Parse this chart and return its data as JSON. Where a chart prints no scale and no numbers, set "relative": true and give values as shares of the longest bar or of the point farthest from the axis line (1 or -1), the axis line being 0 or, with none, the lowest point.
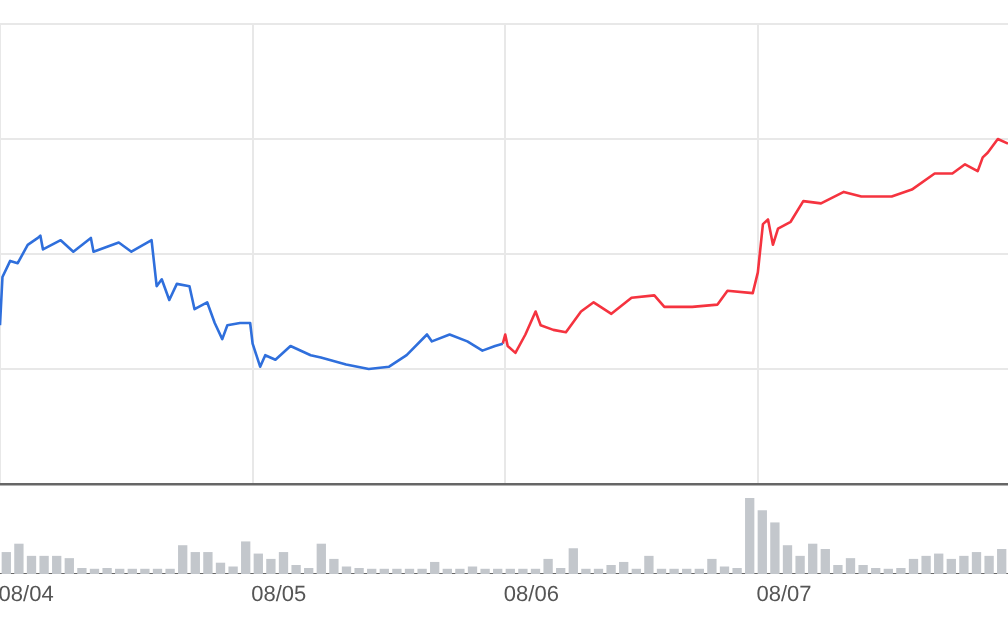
{
  "chart_data": [
    {
      "type": "line",
      "relative": true,
      "grid": true,
      "legend": false,
      "marker": "none",
      "xlim": [
        "--08-04T00:00",
        "--08-07T23:46"
      ],
      "xticks": [
        {
          "value": "--08-04",
          "label": null
        },
        {
          "value": "--08-04T02:29",
          "label": "08/04"
        },
        {
          "value": "--08-05",
          "label": null
        },
        {
          "value": "--08-05T02:29",
          "label": "08/05"
        },
        {
          "value": "--08-06",
          "label": null
        },
        {
          "value": "--08-06T02:29",
          "label": "08/06"
        },
        {
          "value": "--08-07",
          "label": null
        },
        {
          "value": "--08-07T02:29",
          "label": "08/07"
        }
      ],
      "series": [
        {
          "color": "#2f6fdc",
          "x": [
            "--08-04T00:00",
            "--08-04T00:14",
            "--08-04T00:58",
            "--08-04T01:41",
            "--08-04T02:38",
            "--08-04T03:36",
            "--08-04T03:50",
            "--08-04T04:05",
            "--08-04T05:46",
            "--08-04T06:58",
            "--08-04T08:38",
            "--08-04T08:53",
            "--08-04T11:17",
            "--08-04T12:29",
            "--08-04T14:24",
            "--08-04T14:53",
            "--08-04T15:22",
            "--08-04T16:05",
            "--08-04T16:48",
            "--08-04T18:00",
            "--08-04T18:29",
            "--08-04T19:41",
            "--08-04T20:24",
            "--08-04T21:07",
            "--08-04T21:36",
            "--08-04T22:48",
            "--08-04T23:46",
            "--08-05T00:00",
            "--08-05T00:43",
            "--08-05T01:12",
            "--08-05T02:10",
            "--08-05T03:36",
            "--08-05T05:31",
            "--08-05T06:29",
            "--08-05T08:53",
            "--08-05T11:02",
            "--08-05T12:58",
            "--08-05T14:38",
            "--08-05T16:34",
            "--08-05T17:02",
            "--08-05T18:43",
            "--08-05T20:24",
            "--08-05T21:50",
            "--08-05T23:02",
            "--08-05T23:46"
          ],
          "values": [
            0.19,
            0.4,
            0.47,
            0.46,
            0.54,
            0.57,
            0.58,
            0.52,
            0.56,
            0.51,
            0.57,
            0.51,
            0.55,
            0.51,
            0.56,
            0.36,
            0.39,
            0.3,
            0.37,
            0.36,
            0.26,
            0.29,
            0.2,
            0.13,
            0.19,
            0.2,
            0.2,
            0.11,
            0.01,
            0.06,
            0.04,
            0.1,
            0.06,
            0.05,
            0.02,
            0,
            0.01,
            0.06,
            0.15,
            0.12,
            0.15,
            0.12,
            0.08,
            0.1,
            0.11
          ]
        },
        {
          "color": "#f5333f",
          "x": [
            "--08-05T23:46",
            "--08-06T00:00",
            "--08-06T00:14",
            "--08-06T00:58",
            "--08-06T01:55",
            "--08-06T02:53",
            "--08-06T03:22",
            "--08-06T04:34",
            "--08-06T05:46",
            "--08-06T07:12",
            "--08-06T08:24",
            "--08-06T10:05",
            "--08-06T12:00",
            "--08-06T14:10",
            "--08-06T15:07",
            "--08-06T17:46",
            "--08-06T20:10",
            "--08-06T21:07",
            "--08-06T23:31",
            "--08-07T00:00",
            "--08-07T00:29",
            "--08-07T00:58",
            "--08-07T01:26",
            "--08-07T01:55",
            "--08-07T03:07",
            "--08-07T04:19",
            "--08-07T06:00",
            "--08-07T08:10",
            "--08-07T09:50",
            "--08-07T12:43",
            "--08-07T14:38",
            "--08-07T16:48",
            "--08-07T18:29",
            "--08-07T19:41",
            "--08-07T20:53",
            "--08-07T21:22",
            "--08-07T21:50",
            "--08-07T22:48",
            "--08-07T23:46"
          ],
          "values": [
            0.11,
            0.15,
            0.1,
            0.07,
            0.15,
            0.25,
            0.19,
            0.17,
            0.16,
            0.25,
            0.29,
            0.24,
            0.31,
            0.32,
            0.27,
            0.27,
            0.28,
            0.34,
            0.33,
            0.42,
            0.63,
            0.65,
            0.54,
            0.61,
            0.64,
            0.73,
            0.72,
            0.77,
            0.75,
            0.75,
            0.78,
            0.85,
            0.85,
            0.89,
            0.86,
            0.92,
            0.94,
            1.0,
            0.98
          ]
        }
      ]
    },
    {
      "type": "bar",
      "relative": true,
      "tick_labels": false,
      "legend": false,
      "color": "#c3c7cc",
      "categories": [
        null,
        null,
        null,
        null,
        null,
        null,
        null,
        null,
        null,
        null,
        null,
        null,
        null,
        null,
        null,
        null,
        null,
        null,
        null,
        null,
        null,
        null,
        null,
        null,
        null,
        null,
        null,
        null,
        null,
        null,
        null,
        null,
        null,
        null,
        null,
        null,
        null,
        null,
        null,
        null,
        null,
        null,
        null,
        null,
        null,
        null,
        null,
        null,
        null,
        null,
        null,
        null,
        null,
        null,
        null,
        null,
        null,
        null,
        null,
        null,
        null,
        null,
        null,
        null,
        null,
        null,
        null,
        null,
        null,
        null,
        null,
        null,
        null,
        null,
        null,
        null,
        null,
        null,
        null,
        null
      ],
      "values": [
        0.28,
        0.39,
        0.23,
        0.23,
        0.23,
        0.2,
        0.07,
        0.06,
        0.07,
        0.06,
        0.06,
        0.06,
        0.06,
        0.06,
        0.37,
        0.28,
        0.28,
        0.14,
        0.09,
        0.42,
        0.26,
        0.19,
        0.28,
        0.11,
        0.07,
        0.39,
        0.19,
        0.09,
        0.07,
        0.06,
        0.06,
        0.06,
        0.06,
        0.06,
        0.15,
        0.06,
        0.06,
        0.09,
        0.06,
        0.06,
        0.06,
        0.06,
        0.06,
        0.19,
        0.07,
        0.33,
        0.06,
        0.06,
        0.11,
        0.15,
        0.06,
        0.23,
        0.06,
        0.06,
        0.06,
        0.06,
        0.19,
        0.09,
        0.07,
        1,
        0.83,
        0.67,
        0.37,
        0.23,
        0.39,
        0.32,
        0.11,
        0.2,
        0.11,
        0.07,
        0.06,
        0.07,
        0.19,
        0.23,
        0.26,
        0.19,
        0.23,
        0.28,
        0.23,
        0.32
      ]
    }
  ]
}
